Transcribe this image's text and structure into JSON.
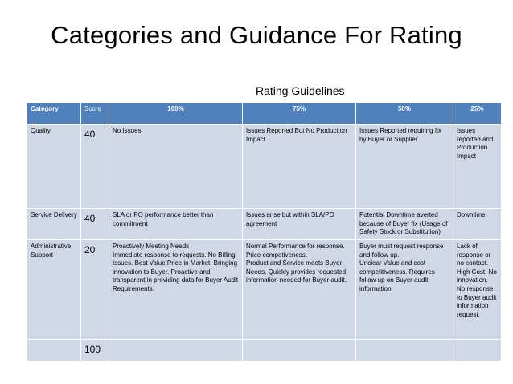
{
  "slide": {
    "title": "Categories and Guidance For Rating",
    "subtitle": "Rating Guidelines"
  },
  "table": {
    "headers": [
      "Category",
      "Score",
      "100%",
      "75%",
      "50%",
      "25%"
    ],
    "rows": [
      [
        "Quality",
        "40",
        "No Issues",
        "Issues Reported But No Production Impact",
        "Issues Reported requiring fix by Buyer or Supplier",
        "Issues reported and Production Impact"
      ],
      [
        "Service Delivery",
        "40",
        "SLA or PO performance better than commitment",
        "Issues arise but within SLA/PO agreement",
        "Potential Downtime averted because of Buyer fix (Usage of Safety Stock or Substitution)",
        "Downtime"
      ],
      [
        "Administrative Support",
        "20",
        "Proactively Meeting Needs\nImmediate response to requests.  No Billing Issues.  Best Value Price in Market.  Bringing innovation to Buyer. Proactive and transparent in providing data for Buyer Audit Requirements.",
        "Normal Performance for response.  Price competiveness.\nProduct and Service meets Buyer Needs. Quickly provides requested information needed for Buyer audit.",
        "Buyer must request response and follow up.\nUnclear Value and cost competitiveness. Requires follow up on Buyer audit information.",
        "Lack of response or no contact. High Cost. No innovation. No response to Buyer audit information request."
      ],
      [
        "",
        "100",
        "",
        "",
        "",
        ""
      ]
    ]
  }
}
